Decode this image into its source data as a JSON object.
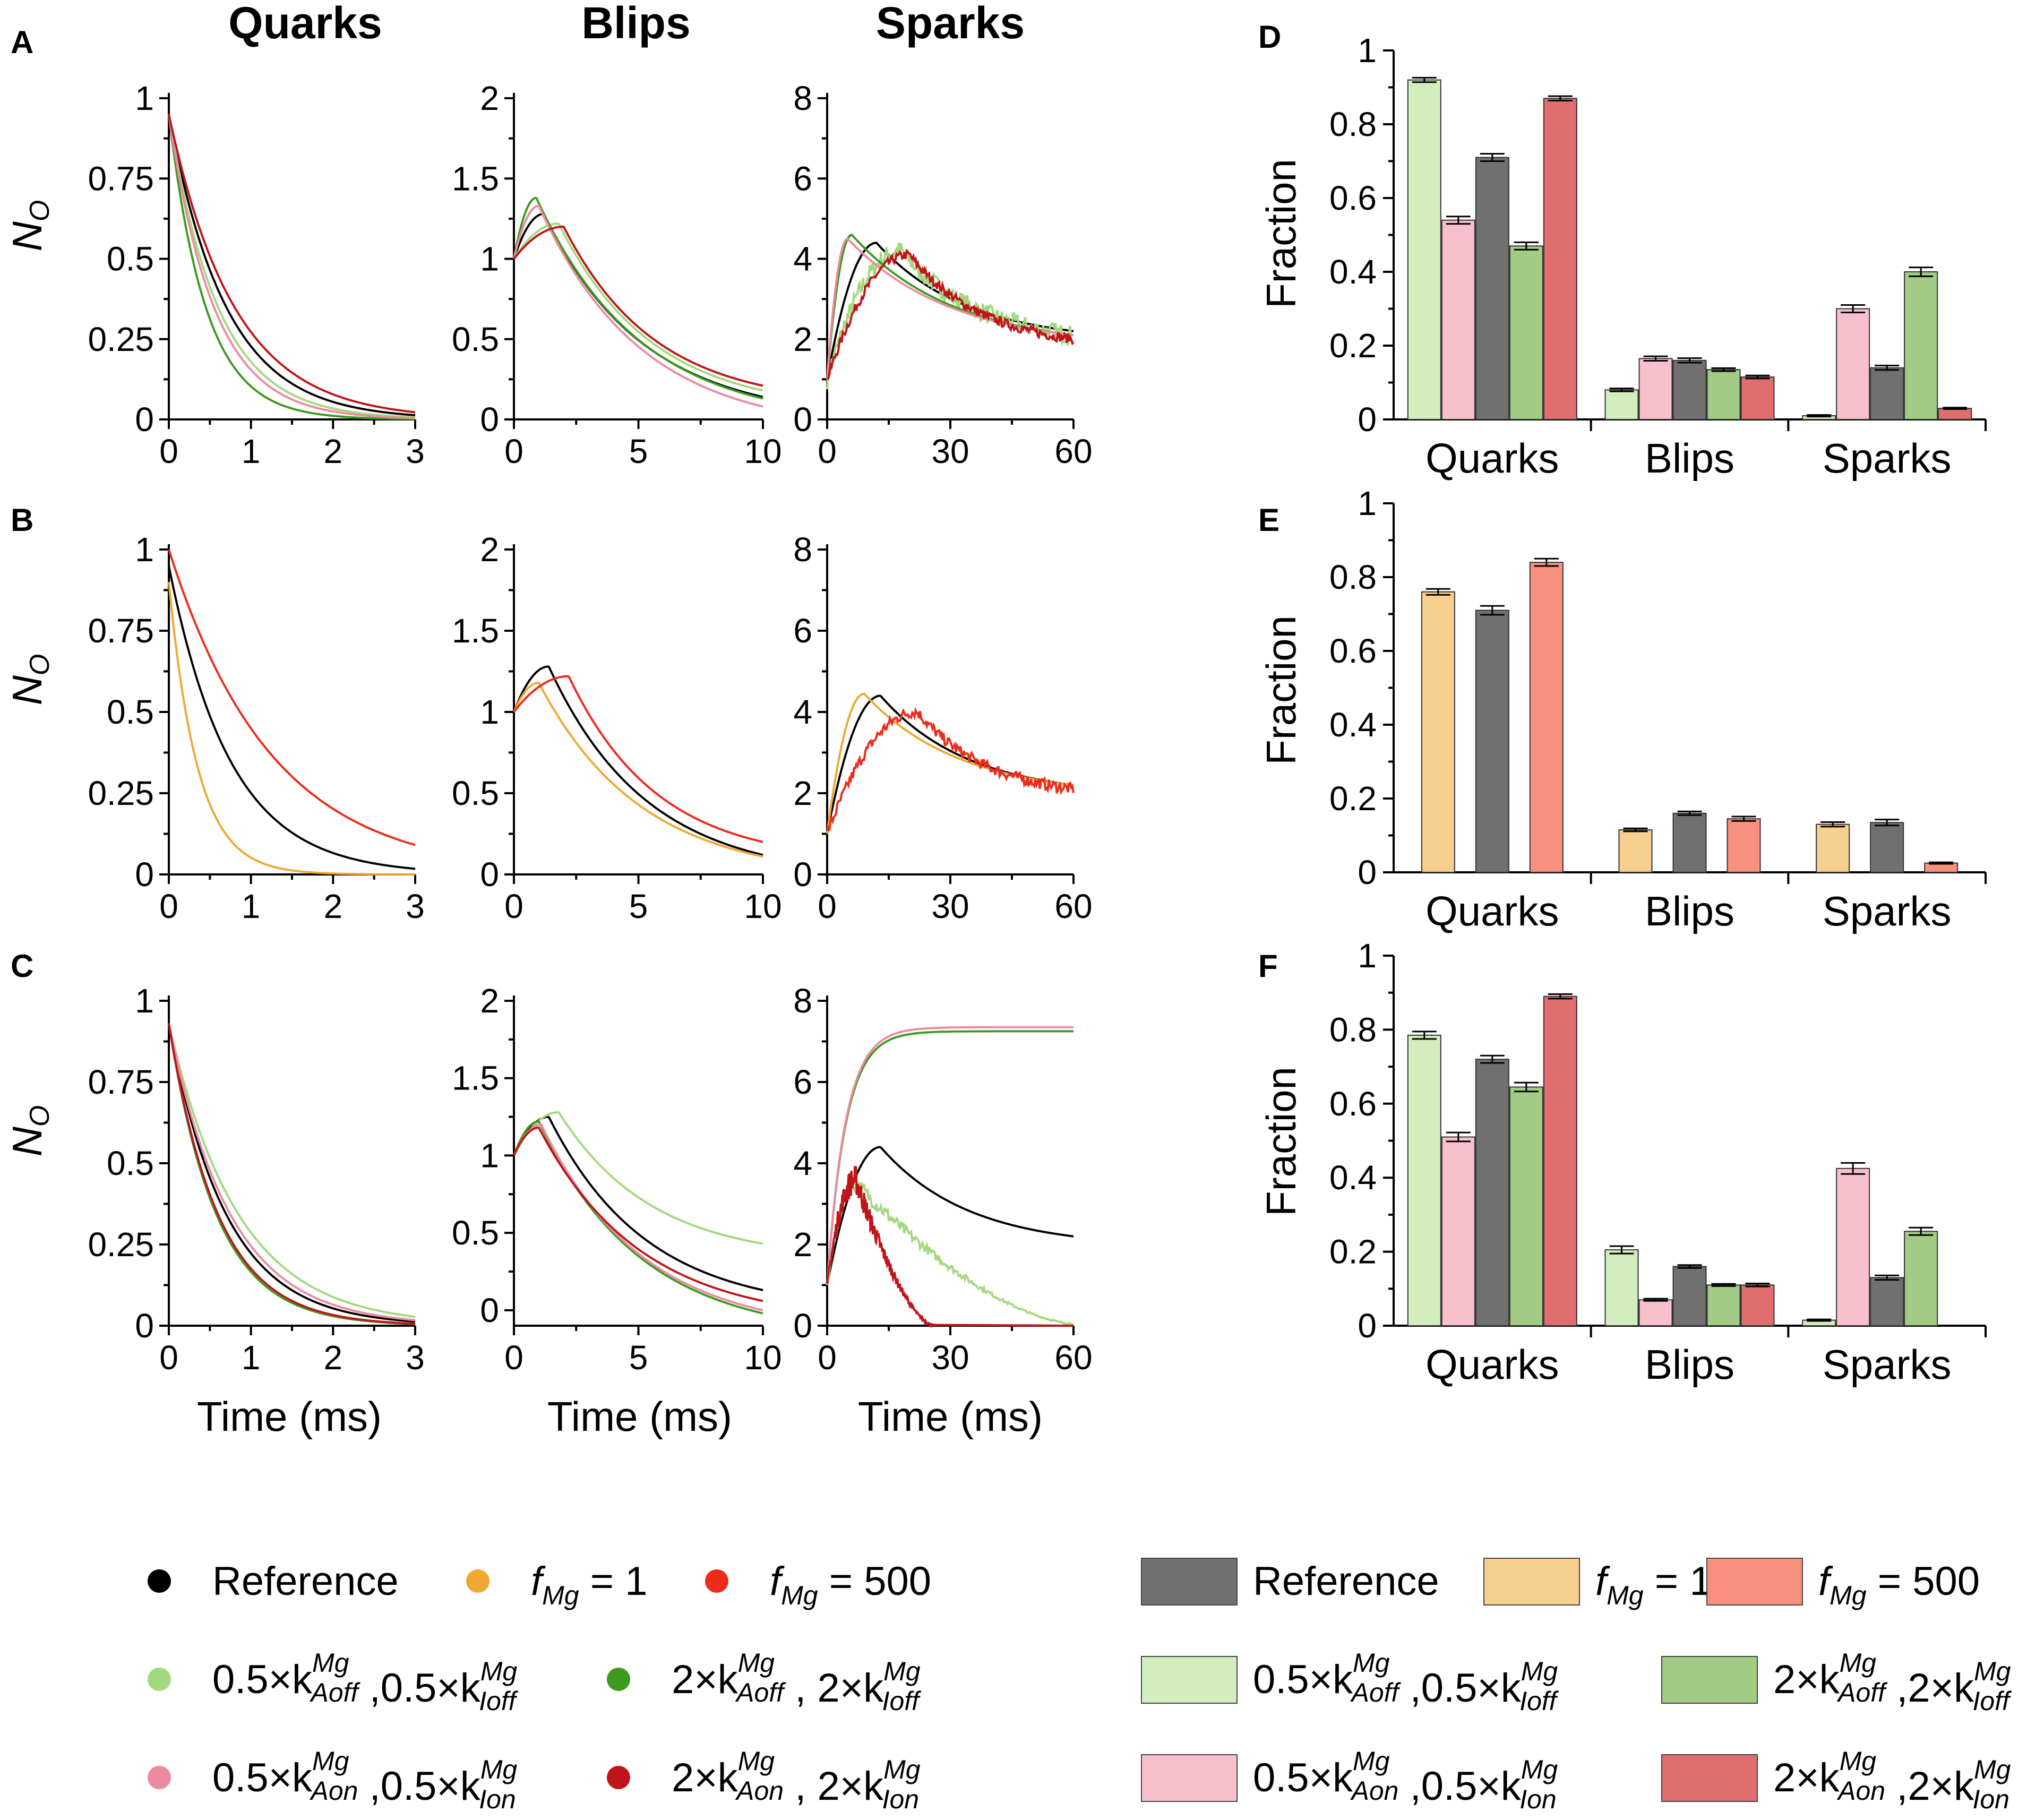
{
  "figure": {
    "column_titles": [
      "Quarks",
      "Blips",
      "Sparks"
    ],
    "panel_letters": [
      "A",
      "B",
      "C",
      "D",
      "E",
      "F"
    ],
    "ylabel_line": "N",
    "ylabel_line_sub": "O",
    "xlabel_line": "Time (ms)",
    "ylabel_bar": "Fraction"
  },
  "colors": {
    "reference": "#000000",
    "fmg1": "#f0a830",
    "fmg500": "#ee2a1a",
    "kAoff_half": "#a3d97e",
    "kAoff_double": "#3c9a1e",
    "kAon_half": "#ec8aa0",
    "kAon_double": "#c0141a",
    "bar_reference": "#707070",
    "bar_fmg1": "#f7cf8f",
    "bar_fmg500": "#f9907e",
    "bar_kAoff_half": "#d3edbf",
    "bar_kAoff_double": "#a2cc85",
    "bar_kAon_half": "#f7c0cc",
    "bar_kAon_double": "#e06e6e"
  },
  "legend_lines": [
    {
      "key": "reference",
      "label": "Reference"
    },
    {
      "key": "fmg1",
      "label": "f",
      "sub": "Mg",
      "tail": " = 1"
    },
    {
      "key": "fmg500",
      "label": "f",
      "sub": "Mg",
      "tail": " = 500"
    },
    {
      "key": "kAoff_half",
      "parts": [
        "0.5×k",
        "Aoff",
        "Mg",
        " ,0.5×k",
        "Ioff",
        "Mg"
      ]
    },
    {
      "key": "kAoff_double",
      "parts": [
        "2×k",
        "Aoff",
        "Mg",
        " , 2×k",
        "Ioff",
        "Mg"
      ]
    },
    {
      "key": "kAon_half",
      "parts": [
        "0.5×k",
        "Aon",
        "Mg",
        " ,0.5×k",
        "Ion",
        "Mg"
      ]
    },
    {
      "key": "kAon_double",
      "parts": [
        "2×k",
        "Aon",
        "Mg",
        " , 2×k",
        "Ion",
        "Mg"
      ]
    }
  ],
  "legend_bars": [
    {
      "key": "bar_reference",
      "label": "Reference"
    },
    {
      "key": "bar_fmg1",
      "label": "f",
      "sub": "Mg",
      "tail": " = 1"
    },
    {
      "key": "bar_fmg500",
      "label": "f",
      "sub": "Mg",
      "tail": " = 500"
    },
    {
      "key": "bar_kAoff_half",
      "parts": [
        "0.5×k",
        "Aoff",
        "Mg",
        " ,0.5×k",
        "Ioff",
        "Mg"
      ]
    },
    {
      "key": "bar_kAoff_double",
      "parts": [
        "2×k",
        "Aoff",
        "Mg",
        " ,2×k",
        "Ioff",
        "Mg"
      ]
    },
    {
      "key": "bar_kAon_half",
      "parts": [
        "0.5×k",
        "Aon",
        "Mg",
        " ,0.5×k",
        "Ion",
        "Mg"
      ]
    },
    {
      "key": "bar_kAon_double",
      "parts": [
        "2×k",
        "Aon",
        "Mg",
        " ,2×k",
        "Ion",
        "Mg"
      ]
    }
  ],
  "chart_data": [
    {
      "id": "A-quarks",
      "type": "line",
      "panel": "A",
      "xlim": [
        0,
        3
      ],
      "ylim": [
        0,
        1
      ],
      "xticks": [
        "0",
        "1",
        "2",
        "3"
      ],
      "yticks": [
        "0",
        "0.25",
        "0.5",
        "0.75",
        "1"
      ],
      "series": [
        {
          "key": "reference",
          "kind": "decay",
          "start": 0.95,
          "tau": 0.7
        },
        {
          "key": "kAoff_half",
          "kind": "decay",
          "start": 0.95,
          "tau": 0.6
        },
        {
          "key": "kAoff_double",
          "kind": "decay",
          "start": 0.95,
          "tau": 0.45
        },
        {
          "key": "kAon_half",
          "kind": "decay",
          "start": 0.95,
          "tau": 0.55
        },
        {
          "key": "kAon_double",
          "kind": "decay",
          "start": 0.95,
          "tau": 0.8
        }
      ]
    },
    {
      "id": "A-blips",
      "type": "line",
      "panel": "A",
      "xlim": [
        0,
        10
      ],
      "ylim": [
        0,
        2
      ],
      "xticks": [
        "0",
        "5",
        "10"
      ],
      "yticks": [
        "0",
        "0.5",
        "1",
        "1.5",
        "2"
      ],
      "series": [
        {
          "key": "reference",
          "kind": "pk",
          "start": 1,
          "peak": 1.28,
          "tp": 1.2,
          "endv": 0.14,
          "xend": 10
        },
        {
          "key": "kAoff_half",
          "kind": "pk",
          "start": 1,
          "peak": 1.22,
          "tp": 1.8,
          "endv": 0.18,
          "xend": 10
        },
        {
          "key": "kAoff_double",
          "kind": "pk",
          "start": 1,
          "peak": 1.38,
          "tp": 0.9,
          "endv": 0.13,
          "xend": 10
        },
        {
          "key": "kAon_half",
          "kind": "pk",
          "start": 1,
          "peak": 1.33,
          "tp": 1.0,
          "endv": 0.08,
          "xend": 10
        },
        {
          "key": "kAon_double",
          "kind": "pk",
          "start": 1,
          "peak": 1.2,
          "tp": 2.0,
          "endv": 0.21,
          "xend": 10
        }
      ]
    },
    {
      "id": "A-sparks",
      "type": "line",
      "panel": "A",
      "xlim": [
        0,
        60
      ],
      "ylim": [
        0,
        8
      ],
      "xticks": [
        "0",
        "30",
        "60"
      ],
      "yticks": [
        "0",
        "2",
        "4",
        "6",
        "8"
      ],
      "series": [
        {
          "key": "reference",
          "kind": "pk",
          "start": 1,
          "peak": 4.4,
          "tp": 12,
          "endv": 2.2,
          "xend": 60
        },
        {
          "key": "kAoff_half",
          "kind": "pk",
          "start": 1,
          "peak": 4.2,
          "tp": 18,
          "endv": 2.1,
          "xend": 60,
          "noise": 0.25
        },
        {
          "key": "kAoff_double",
          "kind": "pk",
          "start": 1,
          "peak": 4.6,
          "tp": 6,
          "endv": 2.1,
          "xend": 60
        },
        {
          "key": "kAon_half",
          "kind": "pk",
          "start": 1,
          "peak": 4.5,
          "tp": 5,
          "endv": 2.1,
          "xend": 60
        },
        {
          "key": "kAon_double",
          "kind": "pk",
          "start": 1,
          "peak": 4.1,
          "tp": 20,
          "endv": 2.0,
          "xend": 60,
          "noise": 0.12
        }
      ]
    },
    {
      "id": "B-quarks",
      "type": "line",
      "panel": "B",
      "xlim": [
        0,
        3
      ],
      "ylim": [
        0,
        1
      ],
      "xticks": [
        "0",
        "1",
        "2",
        "3"
      ],
      "yticks": [
        "0",
        "0.25",
        "0.5",
        "0.75",
        "1"
      ],
      "series": [
        {
          "key": "reference",
          "kind": "decay",
          "start": 0.95,
          "tau": 0.75
        },
        {
          "key": "fmg1",
          "kind": "decay",
          "start": 0.9,
          "tau": 0.35
        },
        {
          "key": "fmg500",
          "kind": "decay",
          "start": 1.0,
          "tau": 1.25
        }
      ]
    },
    {
      "id": "B-blips",
      "type": "line",
      "panel": "B",
      "xlim": [
        0,
        10
      ],
      "ylim": [
        0,
        2
      ],
      "xticks": [
        "0",
        "5",
        "10"
      ],
      "yticks": [
        "0",
        "0.5",
        "1",
        "1.5",
        "2"
      ],
      "series": [
        {
          "key": "reference",
          "kind": "pk",
          "start": 1,
          "peak": 1.28,
          "tp": 1.4,
          "endv": 0.12,
          "xend": 10
        },
        {
          "key": "fmg1",
          "kind": "pk",
          "start": 1,
          "peak": 1.18,
          "tp": 1.0,
          "endv": 0.11,
          "xend": 10
        },
        {
          "key": "fmg500",
          "kind": "pk",
          "start": 1,
          "peak": 1.22,
          "tp": 2.2,
          "endv": 0.2,
          "xend": 10
        }
      ]
    },
    {
      "id": "B-sparks",
      "type": "line",
      "panel": "B",
      "xlim": [
        0,
        60
      ],
      "ylim": [
        0,
        8
      ],
      "xticks": [
        "0",
        "30",
        "60"
      ],
      "yticks": [
        "0",
        "2",
        "4",
        "6",
        "8"
      ],
      "series": [
        {
          "key": "reference",
          "kind": "pk",
          "start": 1,
          "peak": 4.4,
          "tp": 13,
          "endv": 2.2,
          "xend": 60
        },
        {
          "key": "fmg1",
          "kind": "pk",
          "start": 1,
          "peak": 4.45,
          "tp": 9,
          "endv": 2.2,
          "xend": 60
        },
        {
          "key": "fmg500",
          "kind": "pk",
          "start": 1,
          "peak": 4.0,
          "tp": 22,
          "endv": 2.1,
          "xend": 60,
          "noise": 0.14
        }
      ]
    },
    {
      "id": "C-quarks",
      "type": "line",
      "panel": "C",
      "xlim": [
        0,
        3
      ],
      "ylim": [
        0,
        1
      ],
      "xticks": [
        "0",
        "1",
        "2",
        "3"
      ],
      "yticks": [
        "0",
        "0.25",
        "0.5",
        "0.75",
        "1"
      ],
      "series": [
        {
          "key": "reference",
          "kind": "decay",
          "start": 0.93,
          "tau": 0.7
        },
        {
          "key": "kAoff_half",
          "kind": "decay",
          "start": 0.93,
          "tau": 0.85
        },
        {
          "key": "kAoff_double",
          "kind": "decay",
          "start": 0.93,
          "tau": 0.58
        },
        {
          "key": "kAon_half",
          "kind": "decay",
          "start": 0.93,
          "tau": 0.75
        },
        {
          "key": "kAon_double",
          "kind": "decay",
          "start": 0.93,
          "tau": 0.6
        }
      ]
    },
    {
      "id": "C-blips",
      "type": "line",
      "panel": "C",
      "xlim": [
        0,
        10
      ],
      "ylim": [
        -0.1,
        2
      ],
      "xticks": [
        "0",
        "5",
        "10"
      ],
      "yticks": [
        "0",
        "0.5",
        "1",
        "1.5",
        "2"
      ],
      "ytick_values": [
        0,
        0.5,
        1,
        1.5,
        2
      ],
      "series": [
        {
          "key": "reference",
          "kind": "pk",
          "start": 1,
          "peak": 1.25,
          "tp": 1.4,
          "endv": 0.13,
          "xend": 10
        },
        {
          "key": "kAoff_half",
          "kind": "pk",
          "start": 1,
          "peak": 1.28,
          "tp": 1.8,
          "endv": 0.43,
          "xend": 10
        },
        {
          "key": "kAoff_double",
          "kind": "pk",
          "start": 1,
          "peak": 1.22,
          "tp": 1.0,
          "endv": -0.02,
          "xend": 10
        },
        {
          "key": "kAon_half",
          "kind": "pk",
          "start": 1,
          "peak": 1.2,
          "tp": 1.1,
          "endv": 0.0,
          "xend": 10
        },
        {
          "key": "kAon_double",
          "kind": "pk",
          "start": 1,
          "peak": 1.18,
          "tp": 1.0,
          "endv": 0.06,
          "xend": 10
        }
      ]
    },
    {
      "id": "C-sparks",
      "type": "line",
      "panel": "C",
      "xlim": [
        0,
        60
      ],
      "ylim": [
        0,
        8
      ],
      "xticks": [
        "0",
        "30",
        "60"
      ],
      "yticks": [
        "0",
        "2",
        "4",
        "6",
        "8"
      ],
      "series": [
        {
          "key": "reference",
          "kind": "pk",
          "start": 1,
          "peak": 4.4,
          "tp": 13,
          "endv": 2.2,
          "xend": 60
        },
        {
          "key": "kAoff_double",
          "kind": "sat",
          "start": 1,
          "plateau": 7.25,
          "tau": 4.5,
          "xend": 60
        },
        {
          "key": "kAon_half",
          "kind": "sat",
          "start": 1,
          "plateau": 7.35,
          "tau": 4.5,
          "xend": 60
        },
        {
          "key": "kAoff_half",
          "kind": "pkz",
          "start": 1,
          "peak": 3.5,
          "tp": 7,
          "endv": 0.05,
          "xend": 60,
          "noise": 0.18
        },
        {
          "key": "kAon_double",
          "kind": "pkz",
          "start": 1,
          "peak": 3.6,
          "tp": 7,
          "endv": 0.0,
          "xend": 26,
          "noise": 0.3
        }
      ]
    },
    {
      "id": "D",
      "type": "bar",
      "panel": "D",
      "ylim": [
        0,
        1
      ],
      "yticks": [
        "0",
        "0.2",
        "0.4",
        "0.6",
        "0.8",
        "1"
      ],
      "categories": [
        "Quarks",
        "Blips",
        "Sparks"
      ],
      "series_keys": [
        "bar_kAoff_half",
        "bar_kAon_half",
        "bar_reference",
        "bar_kAoff_double",
        "bar_kAon_double"
      ],
      "values": [
        [
          0.92,
          0.54,
          0.71,
          0.47,
          0.87
        ],
        [
          0.08,
          0.165,
          0.16,
          0.135,
          0.115
        ],
        [
          0.01,
          0.3,
          0.14,
          0.4,
          0.03
        ]
      ],
      "errors": [
        [
          0.006,
          0.01,
          0.01,
          0.01,
          0.006
        ],
        [
          0.004,
          0.006,
          0.006,
          0.004,
          0.004
        ],
        [
          0.002,
          0.01,
          0.006,
          0.012,
          0.002
        ]
      ]
    },
    {
      "id": "E",
      "type": "bar",
      "panel": "E",
      "ylim": [
        0,
        1
      ],
      "yticks": [
        "0",
        "0.2",
        "0.4",
        "0.6",
        "0.8",
        "1"
      ],
      "categories": [
        "Quarks",
        "Blips",
        "Sparks"
      ],
      "series_keys": [
        "bar_fmg1",
        "bar_reference",
        "bar_fmg500"
      ],
      "values": [
        [
          0.76,
          0.71,
          0.84
        ],
        [
          0.115,
          0.16,
          0.145
        ],
        [
          0.13,
          0.135,
          0.025
        ]
      ],
      "errors": [
        [
          0.008,
          0.012,
          0.01
        ],
        [
          0.004,
          0.005,
          0.006
        ],
        [
          0.006,
          0.008,
          0.002
        ]
      ]
    },
    {
      "id": "F",
      "type": "bar",
      "panel": "F",
      "ylim": [
        0,
        1
      ],
      "yticks": [
        "0",
        "0.2",
        "0.4",
        "0.6",
        "0.8",
        "1"
      ],
      "categories": [
        "Quarks",
        "Blips",
        "Sparks"
      ],
      "series_keys": [
        "bar_kAoff_half",
        "bar_kAon_half",
        "bar_reference",
        "bar_kAoff_double",
        "bar_kAon_double"
      ],
      "values": [
        [
          0.785,
          0.51,
          0.72,
          0.645,
          0.89
        ],
        [
          0.205,
          0.07,
          0.16,
          0.11,
          0.11
        ],
        [
          0.015,
          0.425,
          0.13,
          0.255,
          0.0
        ]
      ],
      "errors": [
        [
          0.01,
          0.012,
          0.01,
          0.012,
          0.006
        ],
        [
          0.01,
          0.003,
          0.004,
          0.003,
          0.004
        ],
        [
          0.002,
          0.015,
          0.006,
          0.01,
          0.0
        ]
      ]
    }
  ]
}
